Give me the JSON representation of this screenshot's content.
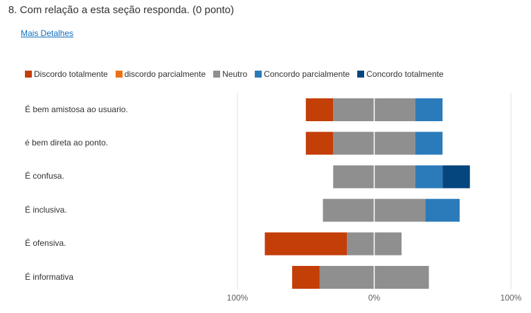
{
  "question": {
    "title": "8.  Com relação a esta seção responda. (0 ponto)",
    "more_link": "Mais Detalhes"
  },
  "colors": {
    "discordo_totalmente": "#c43e08",
    "discordo_parcialmente": "#ea7317",
    "neutro": "#8f8f8f",
    "concordo_parcialmente": "#2b7bba",
    "concordo_totalmente": "#06467f"
  },
  "chart_data": {
    "type": "bar",
    "subtype": "diverging-stacked-horizontal",
    "legend_position": "top",
    "legend": [
      "Discordo totalmente",
      "discordo parcialmente",
      "Neutro",
      "Concordo parcialmente",
      "Concordo totalmente"
    ],
    "categories": [
      "É bem amistosa ao usuario.",
      "é bem direta ao ponto.",
      "É confusa.",
      "É inclusiva.",
      "É ofensiva.",
      "É informativa"
    ],
    "series": [
      {
        "name": "Discordo totalmente",
        "values": [
          20,
          20,
          0,
          0,
          60,
          20
        ]
      },
      {
        "name": "discordo parcialmente",
        "values": [
          0,
          0,
          0,
          0,
          0,
          0
        ]
      },
      {
        "name": "Neutro",
        "values": [
          60,
          60,
          60,
          75,
          40,
          80
        ]
      },
      {
        "name": "Concordo parcialmente",
        "values": [
          20,
          20,
          20,
          25,
          0,
          0
        ]
      },
      {
        "name": "Concordo totalmente",
        "values": [
          0,
          0,
          20,
          0,
          0,
          0
        ]
      }
    ],
    "xlim": [
      -100,
      100
    ],
    "xticks": [
      "100%",
      "0%",
      "100%"
    ],
    "grid": true
  }
}
